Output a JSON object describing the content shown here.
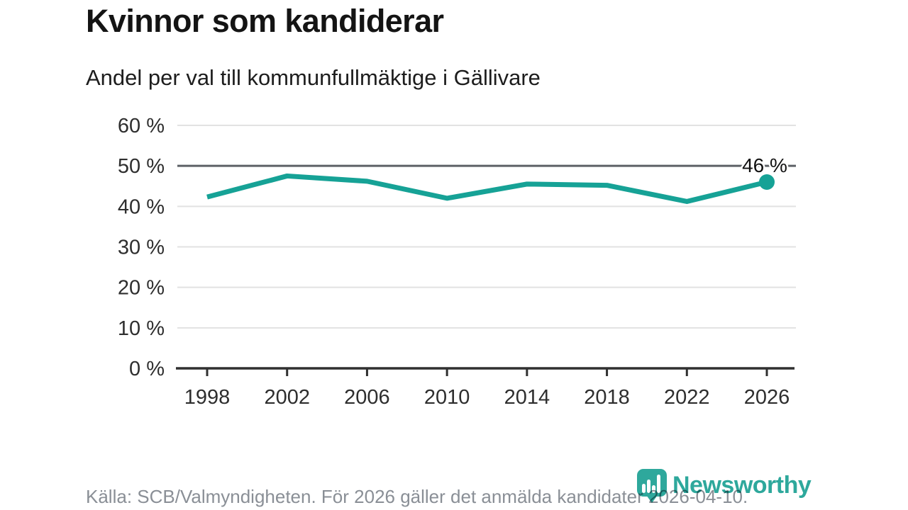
{
  "header": {
    "title": "Kvinnor som kandiderar",
    "subtitle": "Andel per val till kommunfullmäktige i Gällivare"
  },
  "chart_data": {
    "type": "line",
    "title": "Kvinnor som kandiderar",
    "subtitle": "Andel per val till kommunfullmäktige i Gällivare",
    "categories": [
      1998,
      2002,
      2006,
      2010,
      2014,
      2018,
      2022,
      2026
    ],
    "values": [
      42.3,
      47.5,
      46.2,
      42.0,
      45.5,
      45.2,
      41.2,
      46.0
    ],
    "unit": "%",
    "ylim": [
      0,
      60
    ],
    "yticks": [
      0,
      10,
      20,
      30,
      40,
      50,
      60
    ],
    "ytick_labels": [
      "0 %",
      "10 %",
      "20 %",
      "30 %",
      "40 %",
      "50 %",
      "60 %"
    ],
    "xtick_labels": [
      "1998",
      "2002",
      "2006",
      "2010",
      "2014",
      "2018",
      "2022",
      "2026"
    ],
    "reference_line": 50,
    "end_point_annotation": "46 %",
    "grid": "horizontal",
    "legend": "none",
    "colors": {
      "line": "#16a296",
      "marker": "#16a296",
      "grid_light": "#e2e2e2",
      "grid_dark": "#5d6166",
      "axis": "#303030"
    }
  },
  "footer": {
    "source": "Källa: SCB/Valmyndigheten. För 2026 gäller det anmälda kandidater 2026-04-10.",
    "brand": "Newsworthy",
    "brand_color": "#2ea89c"
  }
}
